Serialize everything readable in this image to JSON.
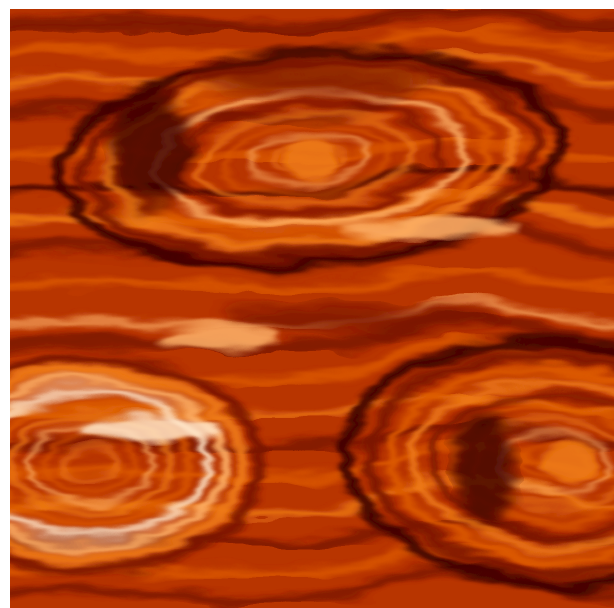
{
  "image": {
    "subject": "fluid-vortex-field",
    "palette": {
      "deep": "#3a0400",
      "dark": "#7a1400",
      "base": "#b83400",
      "mid": "#dc5a06",
      "bright": "#f07d12",
      "glow": "#ffb46a",
      "highlight": "#ffe6c8"
    }
  }
}
